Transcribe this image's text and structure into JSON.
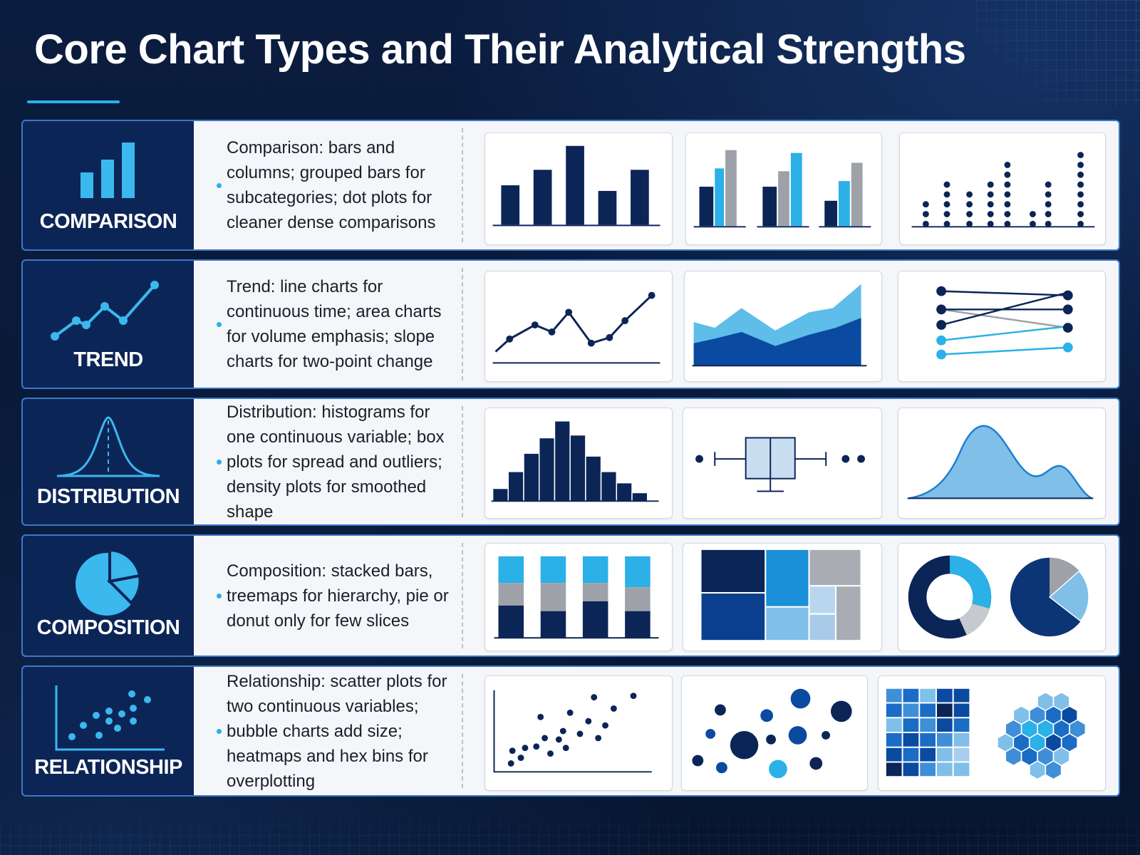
{
  "title": "Core Chart Types and Their Analytical Strengths",
  "colors": {
    "navy": "#0c2557",
    "dark_blue": "#0f2e63",
    "royal_blue": "#0a4aa0",
    "cyan": "#2bb0e8",
    "light_blue": "#7fbfe8",
    "gray": "#9ea2a8",
    "accent_line": "#2bb0e8"
  },
  "rows": [
    {
      "category": "COMPARISON",
      "icon": "bar-chart-icon",
      "description": "Comparison: bars and columns; grouped bars for subcategories; dot plots for cleaner dense comparisons",
      "thumbnails": [
        "bar-chart",
        "grouped-bar-chart",
        "dot-plot"
      ]
    },
    {
      "category": "TREND",
      "icon": "line-chart-icon",
      "description": "Trend: line charts for continuous time; area charts for volume emphasis; slope charts for two-point change",
      "thumbnails": [
        "line-chart",
        "area-chart",
        "slope-chart"
      ]
    },
    {
      "category": "DISTRIBUTION",
      "icon": "bell-curve-icon",
      "description": "Distribution: histograms for one continuous variable; box plots for spread and outliers; density plots for smoothed shape",
      "thumbnails": [
        "histogram",
        "box-plot",
        "density-plot"
      ]
    },
    {
      "category": "COMPOSITION",
      "icon": "pie-chart-icon",
      "description": "Composition: stacked bars, treemaps for hierarchy, pie or donut only for few slices",
      "thumbnails": [
        "stacked-bar-chart",
        "treemap",
        "donut-and-pie-chart"
      ]
    },
    {
      "category": "RELATIONSHIP",
      "icon": "scatter-plot-icon",
      "description": "Relationship: scatter plots for two continuous variables; bubble charts add size; heatmaps and hex bins for overplotting",
      "thumbnails": [
        "scatter-plot",
        "bubble-chart",
        "heatmap-and-hexbin"
      ]
    }
  ]
}
